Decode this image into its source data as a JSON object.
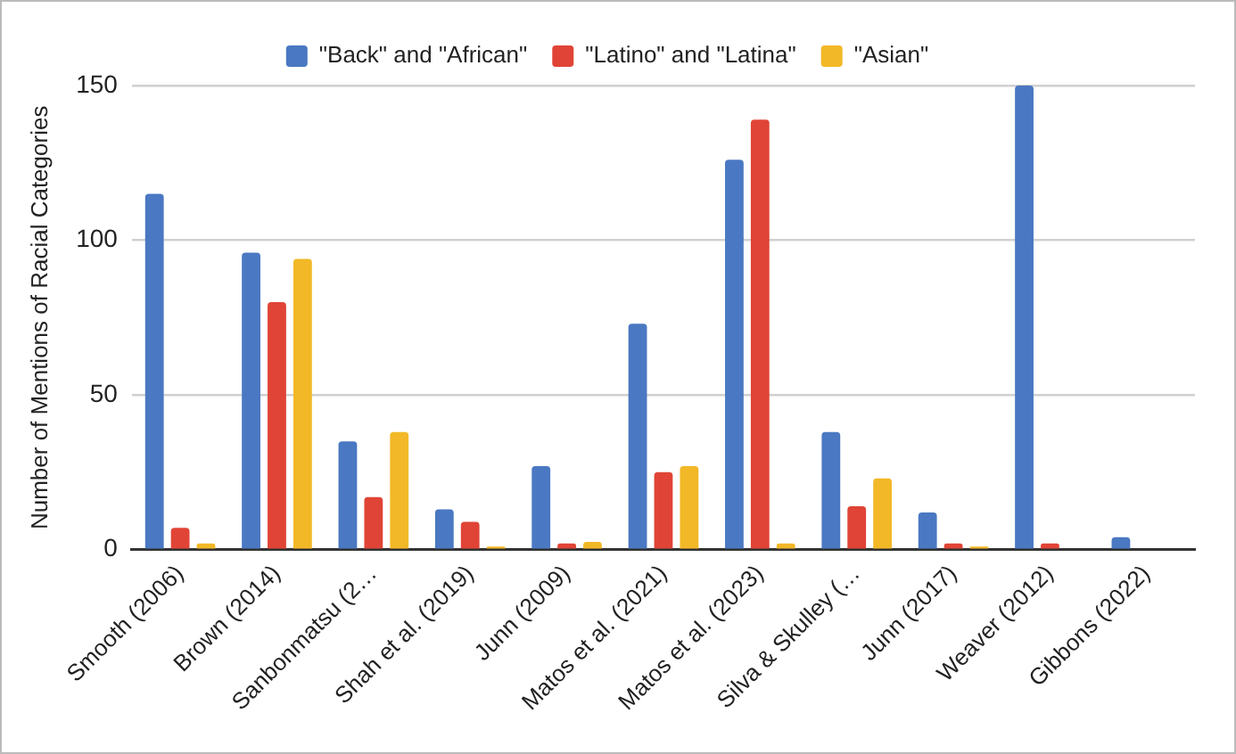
{
  "chart_data": {
    "type": "bar",
    "ylabel": "Number of Mentions of Racial Categories",
    "categories": [
      "Smooth (2006)",
      "Brown (2014)",
      "Sanbonmatsu (2…",
      "Shah et al. (2019)",
      "Junn (2009)",
      "Matos et al. (2021)",
      "Matos et al. (2023)",
      "Silva & Skulley (…",
      "Junn (2017)",
      "Weaver (2012)",
      "Gibbons (2022)"
    ],
    "series": [
      {
        "name": "\"Back\" and \"African\"",
        "color": "#4a78c2",
        "values": [
          115,
          96,
          35,
          13,
          27,
          73,
          126,
          38,
          12,
          150,
          4
        ]
      },
      {
        "name": "\"Latino\" and \"Latina\"",
        "color": "#e04436",
        "values": [
          7,
          80,
          17,
          9,
          2,
          25,
          139,
          14,
          2,
          2,
          null
        ]
      },
      {
        "name": "\"Asian\"",
        "color": "#f2b827",
        "values": [
          2,
          94,
          38,
          1,
          2.5,
          27,
          2,
          23,
          1,
          null,
          null
        ]
      }
    ],
    "ylim": [
      0,
      150
    ],
    "yticks": [
      0,
      50,
      100,
      150
    ],
    "grid": "y",
    "legend": "top"
  }
}
